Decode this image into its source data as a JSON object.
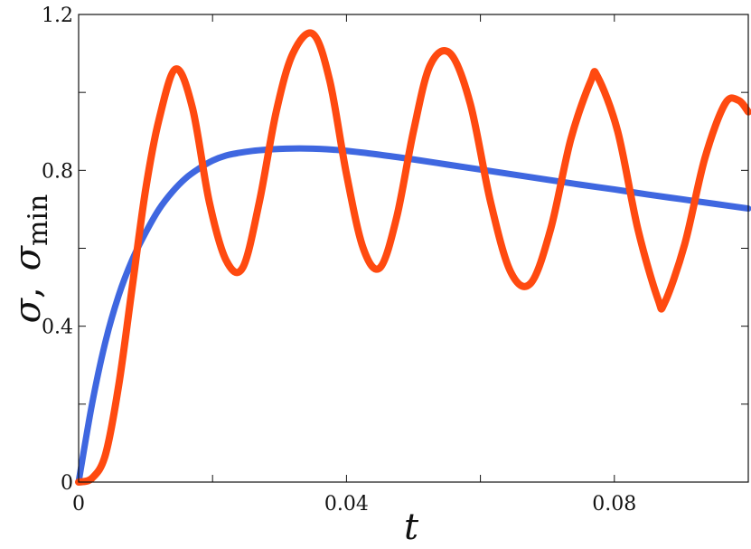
{
  "chart_data": {
    "type": "line",
    "title": "",
    "xlabel": "t",
    "ylabel": "σ,  σmin",
    "ylabel_parts": {
      "sigma": "σ",
      "comma": ",",
      "sigma_min_symbol": "σ",
      "sigma_min_subscript": "min"
    },
    "xlim": [
      0,
      0.1
    ],
    "ylim": [
      0,
      1.2
    ],
    "grid": false,
    "legend": "none",
    "x_ticks": [
      0,
      0.02,
      0.04,
      0.06,
      0.08,
      0.1
    ],
    "x_tick_labels": [
      "0",
      "",
      "0.04",
      "",
      "0.08",
      ""
    ],
    "y_ticks": [
      0,
      0.2,
      0.4,
      0.6,
      0.8,
      1.0,
      1.2
    ],
    "y_tick_labels": [
      "0",
      "",
      "0.4",
      "",
      "0.8",
      "",
      "1.2"
    ],
    "series": [
      {
        "color": "#3f67e0",
        "x": [
          0,
          0.002,
          0.004,
          0.006,
          0.008,
          0.01,
          0.012,
          0.014,
          0.016,
          0.018,
          0.02,
          0.022,
          0.024,
          0.026,
          0.028,
          0.03,
          0.032,
          0.034,
          0.036,
          0.038,
          0.04,
          0.045,
          0.05,
          0.055,
          0.06,
          0.065,
          0.07,
          0.075,
          0.08,
          0.085,
          0.09,
          0.095,
          0.1
        ],
        "y": [
          0,
          0.2,
          0.36,
          0.48,
          0.57,
          0.64,
          0.7,
          0.745,
          0.78,
          0.805,
          0.825,
          0.838,
          0.845,
          0.85,
          0.853,
          0.855,
          0.856,
          0.856,
          0.855,
          0.853,
          0.85,
          0.84,
          0.828,
          0.815,
          0.802,
          0.789,
          0.776,
          0.763,
          0.751,
          0.738,
          0.726,
          0.714,
          0.702
        ]
      },
      {
        "color": "#ff4a10",
        "x": [
          0,
          0.002,
          0.004,
          0.006,
          0.008,
          0.01,
          0.012,
          0.0145,
          0.017,
          0.0195,
          0.022,
          0.0245,
          0.027,
          0.0295,
          0.032,
          0.035,
          0.0375,
          0.04,
          0.0425,
          0.045,
          0.0475,
          0.05,
          0.0525,
          0.0555,
          0.0585,
          0.0615,
          0.0645,
          0.0675,
          0.0705,
          0.0735,
          0.0765,
          0.0775,
          0.0805,
          0.0835,
          0.0865,
          0.0875,
          0.0905,
          0.0935,
          0.0965,
          0.0985,
          0.1
        ],
        "y": [
          0,
          0.01,
          0.07,
          0.25,
          0.5,
          0.75,
          0.93,
          1.06,
          0.96,
          0.72,
          0.57,
          0.55,
          0.72,
          0.95,
          1.1,
          1.15,
          1.03,
          0.79,
          0.6,
          0.55,
          0.68,
          0.9,
          1.07,
          1.1,
          0.97,
          0.72,
          0.54,
          0.51,
          0.65,
          0.88,
          1.03,
          1.04,
          0.9,
          0.65,
          0.47,
          0.46,
          0.61,
          0.83,
          0.97,
          0.98,
          0.95
        ]
      }
    ]
  }
}
